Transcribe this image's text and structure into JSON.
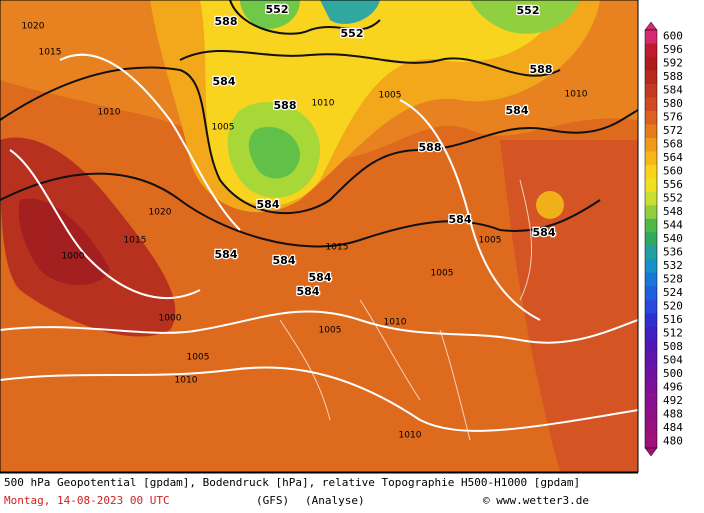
{
  "colorbar": {
    "ticks": [
      600,
      596,
      592,
      588,
      584,
      580,
      576,
      572,
      568,
      564,
      560,
      556,
      552,
      548,
      544,
      540,
      536,
      532,
      528,
      524,
      520,
      516,
      512,
      508,
      504,
      500,
      496,
      492,
      488,
      484,
      480
    ],
    "colors": [
      "#d42a70",
      "#c01a30",
      "#b01c1c",
      "#b82a1e",
      "#c43a20",
      "#d04a22",
      "#dc6020",
      "#e67a1e",
      "#f09a1a",
      "#f6b814",
      "#fad21a",
      "#f0e020",
      "#c8e030",
      "#90d040",
      "#50b848",
      "#30a860",
      "#20a0a0",
      "#1890c8",
      "#1878d8",
      "#2060e0",
      "#2848e0",
      "#3030d0",
      "#4020c0",
      "#5018b0",
      "#6014a8",
      "#7010a0",
      "#7c1098",
      "#881090",
      "#901088",
      "#981080",
      "#a01078"
    ]
  },
  "map_labels": [
    "552",
    "552",
    "552",
    "588",
    "584",
    "588",
    "584",
    "588",
    "584",
    "584",
    "584",
    "584",
    "584",
    "584",
    "588",
    "584",
    "1010",
    "1020",
    "1015",
    "1005",
    "1015",
    "1000",
    "1005",
    "1010",
    "1005",
    "1010",
    "1005",
    "1010",
    "1015",
    "1020",
    "1010",
    "1005",
    "1000",
    "1010",
    "1005"
  ],
  "footer": {
    "line1": "500 hPa Geopotential [gpdam], Bodendruck [hPa], relative Topographie H500-H1000 [gpdam]",
    "date": "Montag, 14-08-2023  00 UTC",
    "model": "(GFS)",
    "run": "(Analyse)",
    "credit": "© www.wetter3.de"
  }
}
